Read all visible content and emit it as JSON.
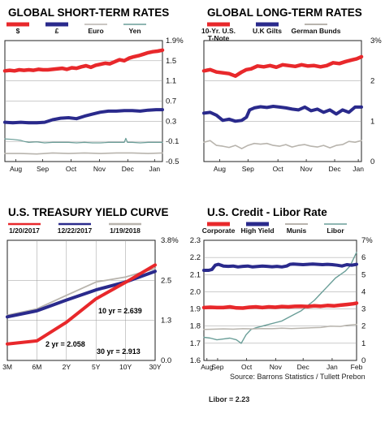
{
  "colors": {
    "red": "#e8282b",
    "navy": "#2a2a8c",
    "grey": "#b8b4ad",
    "teal": "#6a9e98",
    "border": "#222222",
    "grid": "#9a9a9a"
  },
  "chart_data": [
    {
      "id": "short",
      "type": "line",
      "title": "GLOBAL SHORT-TERM RATES",
      "legend": [
        "$",
        "£",
        "Euro",
        "Yen"
      ],
      "x_ticks": [
        "Aug",
        "Sep",
        "Oct",
        "Nov",
        "Dec",
        "Jan"
      ],
      "y_ticks": [
        "1.9%",
        "1.5",
        "1.1",
        "0.7",
        "0.3",
        "-0.1",
        "-0.5"
      ],
      "ylim": [
        -0.5,
        1.9
      ],
      "grid": true,
      "series": [
        {
          "name": "$",
          "color": "red",
          "x": [
            0,
            3,
            6,
            9,
            12,
            15,
            18,
            21,
            24,
            27,
            30,
            33,
            36,
            39,
            42,
            45,
            48,
            51,
            54,
            57,
            60,
            63,
            66,
            69,
            72,
            75,
            78,
            81,
            84,
            87,
            90,
            93,
            96,
            99
          ],
          "values": [
            1.3,
            1.31,
            1.3,
            1.32,
            1.31,
            1.32,
            1.31,
            1.33,
            1.32,
            1.32,
            1.33,
            1.34,
            1.35,
            1.33,
            1.36,
            1.35,
            1.38,
            1.4,
            1.37,
            1.41,
            1.43,
            1.45,
            1.44,
            1.48,
            1.52,
            1.5,
            1.55,
            1.58,
            1.6,
            1.63,
            1.66,
            1.68,
            1.69,
            1.71
          ]
        },
        {
          "name": "£",
          "color": "navy",
          "x": [
            0,
            5,
            10,
            15,
            20,
            25,
            30,
            35,
            40,
            45,
            50,
            55,
            60,
            65,
            70,
            75,
            80,
            85,
            90,
            95,
            99
          ],
          "values": [
            0.28,
            0.27,
            0.28,
            0.27,
            0.27,
            0.28,
            0.33,
            0.36,
            0.37,
            0.35,
            0.4,
            0.44,
            0.48,
            0.5,
            0.5,
            0.51,
            0.51,
            0.5,
            0.52,
            0.53,
            0.53
          ]
        },
        {
          "name": "Euro",
          "color": "grey",
          "x": [
            0,
            10,
            20,
            30,
            40,
            50,
            60,
            70,
            80,
            90,
            99
          ],
          "values": [
            -0.34,
            -0.34,
            -0.35,
            -0.33,
            -0.34,
            -0.33,
            -0.34,
            -0.33,
            -0.33,
            -0.34,
            -0.33
          ]
        },
        {
          "name": "Yen",
          "color": "teal",
          "x": [
            0,
            5,
            10,
            12,
            15,
            20,
            25,
            30,
            35,
            40,
            45,
            50,
            55,
            60,
            65,
            70,
            75,
            76,
            77,
            80,
            85,
            90,
            95,
            99
          ],
          "values": [
            -0.05,
            -0.06,
            -0.08,
            -0.1,
            -0.12,
            -0.11,
            -0.13,
            -0.12,
            -0.12,
            -0.12,
            -0.13,
            -0.12,
            -0.13,
            -0.13,
            -0.12,
            -0.12,
            -0.12,
            -0.04,
            -0.12,
            -0.12,
            -0.13,
            -0.12,
            -0.12,
            -0.12
          ]
        }
      ]
    },
    {
      "id": "long",
      "type": "line",
      "title": "GLOBAL LONG-TERM RATES",
      "legend": [
        "10-Yr. U.S. T-Note",
        "U.K Gilts",
        "German Bunds"
      ],
      "x_ticks": [
        "Aug",
        "Sep",
        "Oct",
        "Nov",
        "Dec",
        "Jan"
      ],
      "y_ticks": [
        "3%",
        "2",
        "1",
        "0"
      ],
      "ylim": [
        0,
        3
      ],
      "grid": true,
      "series": [
        {
          "name": "10-Yr. U.S. T-Note",
          "color": "red",
          "x": [
            0,
            4,
            8,
            12,
            16,
            20,
            24,
            27,
            30,
            34,
            38,
            42,
            46,
            50,
            54,
            58,
            62,
            66,
            70,
            74,
            78,
            82,
            86,
            90,
            94,
            97,
            100
          ],
          "values": [
            2.25,
            2.28,
            2.22,
            2.2,
            2.18,
            2.12,
            2.22,
            2.28,
            2.3,
            2.37,
            2.35,
            2.38,
            2.34,
            2.4,
            2.38,
            2.36,
            2.4,
            2.37,
            2.38,
            2.35,
            2.38,
            2.45,
            2.43,
            2.48,
            2.52,
            2.55,
            2.6
          ]
        },
        {
          "name": "U.K Gilts",
          "color": "navy",
          "x": [
            0,
            4,
            8,
            12,
            16,
            20,
            24,
            27,
            29,
            32,
            36,
            40,
            44,
            48,
            52,
            56,
            60,
            64,
            68,
            72,
            76,
            80,
            84,
            88,
            92,
            96,
            100
          ],
          "values": [
            1.2,
            1.22,
            1.15,
            1.02,
            1.05,
            1.0,
            1.02,
            1.1,
            1.28,
            1.33,
            1.36,
            1.34,
            1.37,
            1.35,
            1.33,
            1.3,
            1.28,
            1.35,
            1.26,
            1.3,
            1.22,
            1.28,
            1.18,
            1.28,
            1.22,
            1.35,
            1.35
          ]
        },
        {
          "name": "German Bunds",
          "color": "grey",
          "x": [
            0,
            4,
            8,
            12,
            16,
            20,
            24,
            28,
            32,
            36,
            40,
            44,
            48,
            52,
            56,
            60,
            64,
            68,
            72,
            76,
            80,
            84,
            88,
            92,
            96,
            100
          ],
          "values": [
            0.48,
            0.52,
            0.4,
            0.38,
            0.35,
            0.4,
            0.32,
            0.4,
            0.45,
            0.43,
            0.45,
            0.4,
            0.38,
            0.42,
            0.36,
            0.4,
            0.42,
            0.38,
            0.36,
            0.4,
            0.34,
            0.4,
            0.42,
            0.5,
            0.48,
            0.52
          ]
        }
      ]
    },
    {
      "id": "yield",
      "type": "line",
      "title": "U.S. TREASURY YIELD CURVE",
      "legend": [
        "1/20/2017",
        "12/22/2017",
        "1/19/2018"
      ],
      "x_ticks": [
        "3M",
        "6M",
        "2Y",
        "5Y",
        "10Y",
        "30Y"
      ],
      "y_ticks": [
        "3.8%",
        "2.5",
        "1.3",
        "0.0"
      ],
      "ylim": [
        0,
        3.8
      ],
      "grid": true,
      "annotations": {
        "ten_year": "10 yr = 2.639",
        "two_year": "2 yr = 2.058",
        "thirty_year": "30 yr = 2.913"
      },
      "series": [
        {
          "name": "1/20/2017",
          "color": "red",
          "x": [
            0,
            1,
            2,
            3,
            4,
            5
          ],
          "values": [
            0.52,
            0.62,
            1.21,
            1.95,
            2.47,
            3.02
          ]
        },
        {
          "name": "12/22/2017",
          "color": "navy",
          "x": [
            0,
            1,
            2,
            3,
            4,
            5
          ],
          "values": [
            1.38,
            1.57,
            1.91,
            2.23,
            2.48,
            2.82
          ]
        },
        {
          "name": "1/19/2018",
          "color": "grey",
          "x": [
            0,
            1,
            2,
            3,
            4,
            5
          ],
          "values": [
            1.43,
            1.63,
            2.06,
            2.48,
            2.64,
            2.91
          ]
        }
      ]
    },
    {
      "id": "credit",
      "type": "line",
      "title": "U.S. Credit - Libor Rate",
      "legend": [
        "Corporate",
        "High Yield",
        "Munis",
        "Libor"
      ],
      "x_ticks": [
        "Aug",
        "Sep",
        "Oct",
        "Nov",
        "Dec",
        "Jan",
        "Feb"
      ],
      "y_ticks_left": [
        "2.3",
        "2.2",
        "2.1",
        "2.0",
        "1.9",
        "1.8",
        "1.7",
        "1.6"
      ],
      "y_ticks_right": [
        "7%",
        "6",
        "5",
        "4",
        "3",
        "2",
        "1",
        "0"
      ],
      "ylim_left": [
        1.6,
        2.3
      ],
      "ylim_right": [
        0,
        7
      ],
      "grid": true,
      "series": [
        {
          "name": "Corporate",
          "axis": "right",
          "color": "red",
          "x": [
            0,
            8,
            16,
            24,
            32,
            40,
            48,
            56,
            64,
            72,
            80,
            88,
            96,
            104,
            112,
            120,
            128,
            136,
            144,
            152,
            160,
            168,
            176,
            184,
            188
          ],
          "values": [
            3.08,
            3.1,
            3.08,
            3.08,
            3.12,
            3.06,
            3.05,
            3.1,
            3.12,
            3.08,
            3.12,
            3.1,
            3.14,
            3.12,
            3.15,
            3.16,
            3.14,
            3.18,
            3.16,
            3.2,
            3.18,
            3.22,
            3.26,
            3.3,
            3.34
          ]
        },
        {
          "name": "High Yield",
          "axis": "right",
          "color": "navy",
          "x": [
            0,
            6,
            10,
            14,
            18,
            24,
            30,
            36,
            42,
            48,
            54,
            60,
            66,
            72,
            78,
            84,
            90,
            96,
            102,
            106,
            110,
            116,
            122,
            128,
            134,
            140,
            146,
            152,
            158,
            164,
            170,
            176,
            182,
            188
          ],
          "values": [
            5.25,
            5.25,
            5.3,
            5.55,
            5.6,
            5.5,
            5.48,
            5.5,
            5.45,
            5.48,
            5.5,
            5.45,
            5.47,
            5.5,
            5.48,
            5.46,
            5.48,
            5.45,
            5.5,
            5.6,
            5.62,
            5.6,
            5.58,
            5.6,
            5.62,
            5.6,
            5.58,
            5.6,
            5.58,
            5.55,
            5.5,
            5.58,
            5.55,
            5.6
          ]
        },
        {
          "name": "Munis",
          "axis": "right",
          "color": "grey",
          "x": [
            0,
            12,
            24,
            36,
            48,
            60,
            72,
            84,
            96,
            108,
            120,
            132,
            144,
            156,
            168,
            176,
            188
          ],
          "values": [
            1.8,
            1.82,
            1.84,
            1.82,
            1.85,
            1.84,
            1.86,
            1.85,
            1.88,
            1.86,
            1.88,
            1.9,
            1.92,
            2.0,
            1.98,
            2.05,
            2.1
          ]
        },
        {
          "name": "Libor",
          "axis": "left",
          "color": "teal",
          "x": [
            0,
            8,
            16,
            24,
            32,
            40,
            46,
            52,
            58,
            64,
            72,
            80,
            88,
            96,
            104,
            112,
            120,
            128,
            136,
            144,
            150,
            156,
            162,
            168,
            174,
            180,
            188
          ],
          "values": [
            1.735,
            1.73,
            1.72,
            1.725,
            1.73,
            1.72,
            1.7,
            1.75,
            1.78,
            1.79,
            1.8,
            1.81,
            1.82,
            1.83,
            1.85,
            1.87,
            1.89,
            1.92,
            1.95,
            1.99,
            2.02,
            2.05,
            2.08,
            2.1,
            2.12,
            2.15,
            2.23
          ]
        }
      ]
    }
  ],
  "footer": {
    "source": "Source: Barrons Statistics / Tullett Prebon",
    "libor": "Libor = 2.23"
  }
}
